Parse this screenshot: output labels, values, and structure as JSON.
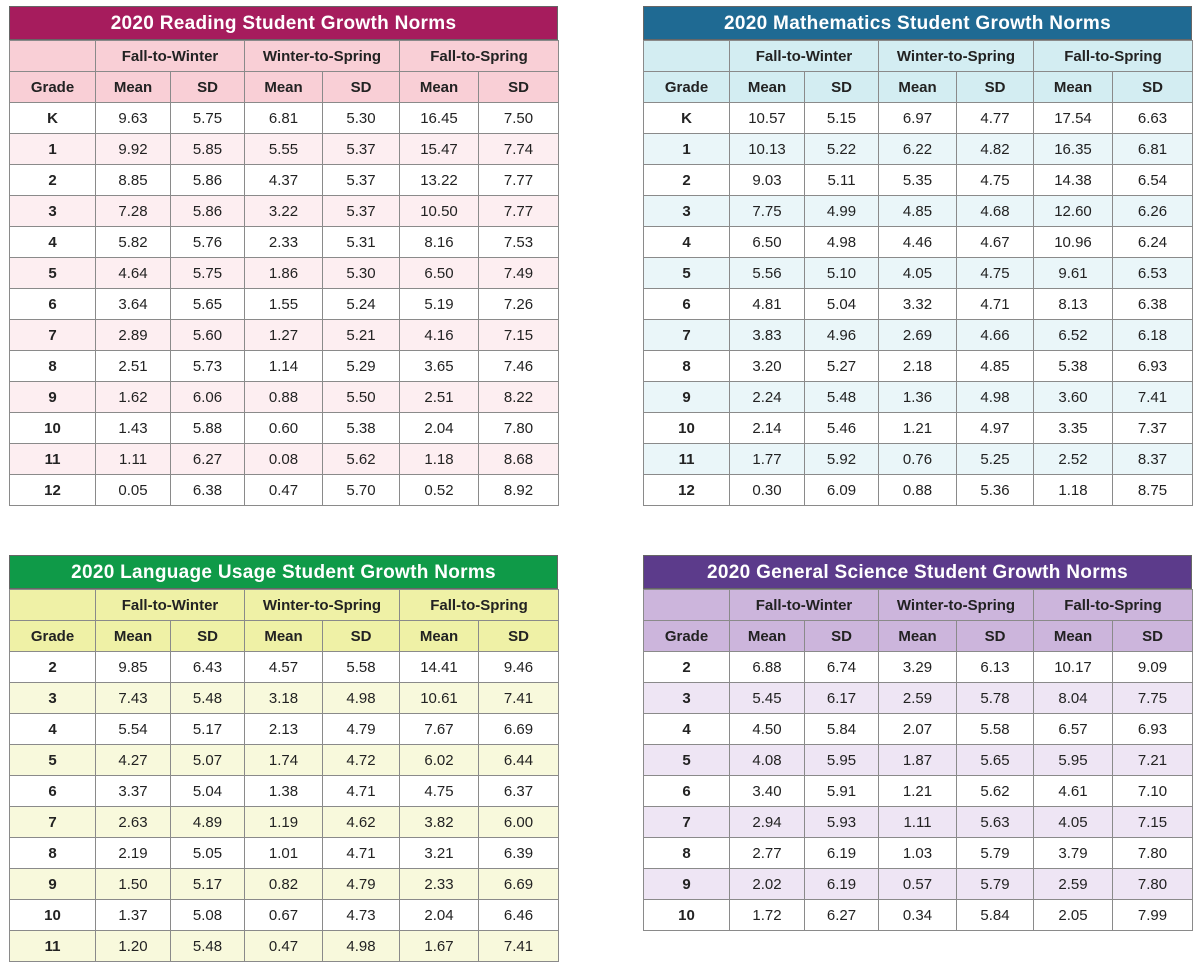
{
  "tables": [
    {
      "title": "2020 Reading Student Growth Norms",
      "groups": [
        "Fall-to-Winter",
        "Winter-to-Spring",
        "Fall-to-Spring"
      ],
      "columns": [
        "Grade",
        "Mean",
        "SD",
        "Mean",
        "SD",
        "Mean",
        "SD"
      ],
      "rows": [
        [
          "K",
          "9.63",
          "5.75",
          "6.81",
          "5.30",
          "16.45",
          "7.50"
        ],
        [
          "1",
          "9.92",
          "5.85",
          "5.55",
          "5.37",
          "15.47",
          "7.74"
        ],
        [
          "2",
          "8.85",
          "5.86",
          "4.37",
          "5.37",
          "13.22",
          "7.77"
        ],
        [
          "3",
          "7.28",
          "5.86",
          "3.22",
          "5.37",
          "10.50",
          "7.77"
        ],
        [
          "4",
          "5.82",
          "5.76",
          "2.33",
          "5.31",
          "8.16",
          "7.53"
        ],
        [
          "5",
          "4.64",
          "5.75",
          "1.86",
          "5.30",
          "6.50",
          "7.49"
        ],
        [
          "6",
          "3.64",
          "5.65",
          "1.55",
          "5.24",
          "5.19",
          "7.26"
        ],
        [
          "7",
          "2.89",
          "5.60",
          "1.27",
          "5.21",
          "4.16",
          "7.15"
        ],
        [
          "8",
          "2.51",
          "5.73",
          "1.14",
          "5.29",
          "3.65",
          "7.46"
        ],
        [
          "9",
          "1.62",
          "6.06",
          "0.88",
          "5.50",
          "2.51",
          "8.22"
        ],
        [
          "10",
          "1.43",
          "5.88",
          "0.60",
          "5.38",
          "2.04",
          "7.80"
        ],
        [
          "11",
          "1.11",
          "6.27",
          "0.08",
          "5.62",
          "1.18",
          "8.68"
        ],
        [
          "12",
          "0.05",
          "6.38",
          "0.47",
          "5.70",
          "0.52",
          "8.92"
        ]
      ]
    },
    {
      "title": "2020 Mathematics Student Growth Norms",
      "groups": [
        "Fall-to-Winter",
        "Winter-to-Spring",
        "Fall-to-Spring"
      ],
      "columns": [
        "Grade",
        "Mean",
        "SD",
        "Mean",
        "SD",
        "Mean",
        "SD"
      ],
      "rows": [
        [
          "K",
          "10.57",
          "5.15",
          "6.97",
          "4.77",
          "17.54",
          "6.63"
        ],
        [
          "1",
          "10.13",
          "5.22",
          "6.22",
          "4.82",
          "16.35",
          "6.81"
        ],
        [
          "2",
          "9.03",
          "5.11",
          "5.35",
          "4.75",
          "14.38",
          "6.54"
        ],
        [
          "3",
          "7.75",
          "4.99",
          "4.85",
          "4.68",
          "12.60",
          "6.26"
        ],
        [
          "4",
          "6.50",
          "4.98",
          "4.46",
          "4.67",
          "10.96",
          "6.24"
        ],
        [
          "5",
          "5.56",
          "5.10",
          "4.05",
          "4.75",
          "9.61",
          "6.53"
        ],
        [
          "6",
          "4.81",
          "5.04",
          "3.32",
          "4.71",
          "8.13",
          "6.38"
        ],
        [
          "7",
          "3.83",
          "4.96",
          "2.69",
          "4.66",
          "6.52",
          "6.18"
        ],
        [
          "8",
          "3.20",
          "5.27",
          "2.18",
          "4.85",
          "5.38",
          "6.93"
        ],
        [
          "9",
          "2.24",
          "5.48",
          "1.36",
          "4.98",
          "3.60",
          "7.41"
        ],
        [
          "10",
          "2.14",
          "5.46",
          "1.21",
          "4.97",
          "3.35",
          "7.37"
        ],
        [
          "11",
          "1.77",
          "5.92",
          "0.76",
          "5.25",
          "2.52",
          "8.37"
        ],
        [
          "12",
          "0.30",
          "6.09",
          "0.88",
          "5.36",
          "1.18",
          "8.75"
        ]
      ]
    },
    {
      "title": "2020 Language Usage Student Growth Norms",
      "groups": [
        "Fall-to-Winter",
        "Winter-to-Spring",
        "Fall-to-Spring"
      ],
      "columns": [
        "Grade",
        "Mean",
        "SD",
        "Mean",
        "SD",
        "Mean",
        "SD"
      ],
      "rows": [
        [
          "2",
          "9.85",
          "6.43",
          "4.57",
          "5.58",
          "14.41",
          "9.46"
        ],
        [
          "3",
          "7.43",
          "5.48",
          "3.18",
          "4.98",
          "10.61",
          "7.41"
        ],
        [
          "4",
          "5.54",
          "5.17",
          "2.13",
          "4.79",
          "7.67",
          "6.69"
        ],
        [
          "5",
          "4.27",
          "5.07",
          "1.74",
          "4.72",
          "6.02",
          "6.44"
        ],
        [
          "6",
          "3.37",
          "5.04",
          "1.38",
          "4.71",
          "4.75",
          "6.37"
        ],
        [
          "7",
          "2.63",
          "4.89",
          "1.19",
          "4.62",
          "3.82",
          "6.00"
        ],
        [
          "8",
          "2.19",
          "5.05",
          "1.01",
          "4.71",
          "3.21",
          "6.39"
        ],
        [
          "9",
          "1.50",
          "5.17",
          "0.82",
          "4.79",
          "2.33",
          "6.69"
        ],
        [
          "10",
          "1.37",
          "5.08",
          "0.67",
          "4.73",
          "2.04",
          "6.46"
        ],
        [
          "11",
          "1.20",
          "5.48",
          "0.47",
          "4.98",
          "1.67",
          "7.41"
        ]
      ]
    },
    {
      "title": "2020 General Science Student Growth Norms",
      "groups": [
        "Fall-to-Winter",
        "Winter-to-Spring",
        "Fall-to-Spring"
      ],
      "columns": [
        "Grade",
        "Mean",
        "SD",
        "Mean",
        "SD",
        "Mean",
        "SD"
      ],
      "rows": [
        [
          "2",
          "6.88",
          "6.74",
          "3.29",
          "6.13",
          "10.17",
          "9.09"
        ],
        [
          "3",
          "5.45",
          "6.17",
          "2.59",
          "5.78",
          "8.04",
          "7.75"
        ],
        [
          "4",
          "4.50",
          "5.84",
          "2.07",
          "5.58",
          "6.57",
          "6.93"
        ],
        [
          "5",
          "4.08",
          "5.95",
          "1.87",
          "5.65",
          "5.95",
          "7.21"
        ],
        [
          "6",
          "3.40",
          "5.91",
          "1.21",
          "5.62",
          "4.61",
          "7.10"
        ],
        [
          "7",
          "2.94",
          "5.93",
          "1.11",
          "5.63",
          "4.05",
          "7.15"
        ],
        [
          "8",
          "2.77",
          "6.19",
          "1.03",
          "5.79",
          "3.79",
          "7.80"
        ],
        [
          "9",
          "2.02",
          "6.19",
          "0.57",
          "5.79",
          "2.59",
          "7.80"
        ],
        [
          "10",
          "1.72",
          "6.27",
          "0.34",
          "5.84",
          "2.05",
          "7.99"
        ]
      ]
    }
  ]
}
